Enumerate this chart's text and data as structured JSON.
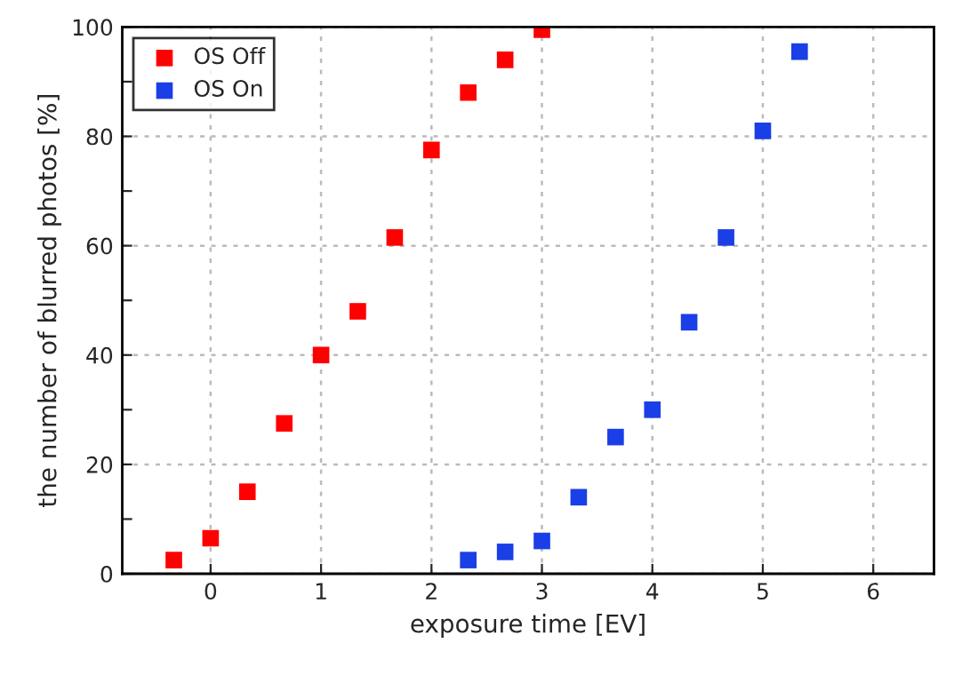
{
  "chart_data": {
    "type": "scatter",
    "xlabel": "exposure time [EV]",
    "ylabel": "the number of blurred photos [%]",
    "xlim": [
      -0.8,
      6.55
    ],
    "xticks": [
      0,
      1,
      2,
      3,
      4,
      5,
      6
    ],
    "ylim": [
      0,
      100
    ],
    "yticks": [
      0,
      {
        "value": 10,
        "label": null
      },
      20,
      {
        "value": 30,
        "label": null
      },
      40,
      {
        "value": 50,
        "label": null
      },
      60,
      {
        "value": 70,
        "label": null
      },
      80,
      {
        "value": 90,
        "label": null
      },
      100
    ],
    "grid": true,
    "legend": "top left",
    "marker": "square",
    "series": [
      {
        "name": "OS Off",
        "color": "#ff0000",
        "x": [
          -0.333,
          0,
          0.333,
          0.667,
          1,
          1.333,
          1.667,
          2,
          2.333,
          2.667,
          3
        ],
        "values": [
          2.5,
          6.5,
          15,
          27.5,
          40,
          48,
          61.5,
          77.5,
          88,
          94,
          99.5
        ]
      },
      {
        "name": "OS On",
        "color": "#1a3fe6",
        "x": [
          2.333,
          2.667,
          3,
          3.333,
          3.667,
          4,
          4.333,
          4.667,
          5,
          5.333
        ],
        "values": [
          2.5,
          4,
          6,
          14,
          25,
          30,
          46,
          61.5,
          81,
          95.5
        ]
      }
    ]
  }
}
